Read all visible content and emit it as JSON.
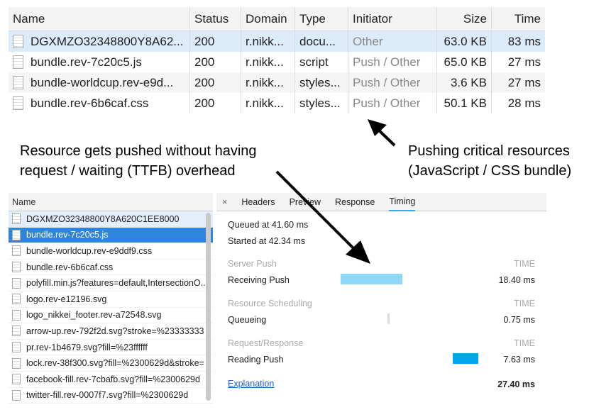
{
  "top_table": {
    "columns": [
      "Name",
      "Status",
      "Domain",
      "Type",
      "Initiator",
      "Size",
      "Time"
    ],
    "rows": [
      [
        "DGXMZO32348800Y8A62...",
        "200",
        "r.nikk...",
        "docu...",
        "Other",
        "63.0 KB",
        "83 ms"
      ],
      [
        "bundle.rev-7c20c5.js",
        "200",
        "r.nikk...",
        "script",
        "Push / Other",
        "65.0 KB",
        "27 ms"
      ],
      [
        "bundle-worldcup.rev-e9d...",
        "200",
        "r.nikk...",
        "styles...",
        "Push / Other",
        "3.6 KB",
        "27 ms"
      ],
      [
        "bundle.rev-6b6caf.css",
        "200",
        "r.nikk...",
        "styles...",
        "Push / Other",
        "50.1 KB",
        "28 ms"
      ]
    ]
  },
  "annotations": {
    "left_line1": "Resource gets pushed without having",
    "left_line2": "request / waiting (TTFB) overhead",
    "right_line1": "Pushing critical resources",
    "right_line2": "(JavaScript / CSS bundle)"
  },
  "file_list": {
    "header": "Name",
    "items": [
      "DGXMZO32348800Y8A620C1EE8000",
      "bundle.rev-7c20c5.js",
      "bundle-worldcup.rev-e9ddf9.css",
      "bundle.rev-6b6caf.css",
      "polyfill.min.js?features=default,IntersectionO...",
      "logo.rev-e12196.svg",
      "logo_nikkei_footer.rev-a72548.svg",
      "arrow-up.rev-792f2d.svg?stroke=%23333333",
      "pr.rev-1b4679.svg?fill=%23ffffff",
      "lock.rev-38f300.svg?fill=%2300629d&stroke=",
      "facebook-fill.rev-7cbafb.svg?fill=%2300629d",
      "twitter-fill.rev-0007f7.svg?fill=%2300629d"
    ],
    "selected": 1
  },
  "detail": {
    "close": "×",
    "tabs": [
      "Headers",
      "Preview",
      "Response",
      "Timing"
    ],
    "active_tab": "Timing",
    "queued": "Queued at 41.60 ms",
    "started": "Started at 42.34 ms",
    "time_header": "TIME",
    "sections": [
      {
        "title": "Server Push",
        "label": "Receiving Push",
        "time": "18.40 ms",
        "color": "#8fd8f8"
      },
      {
        "title": "Resource Scheduling",
        "label": "Queueing",
        "time": "0.75 ms",
        "color": "#dddddd"
      },
      {
        "title": "Request/Response",
        "label": "Reading Push",
        "time": "7.63 ms",
        "color": "#00a6ed"
      }
    ],
    "explanation": "Explanation",
    "total": "27.40 ms"
  }
}
